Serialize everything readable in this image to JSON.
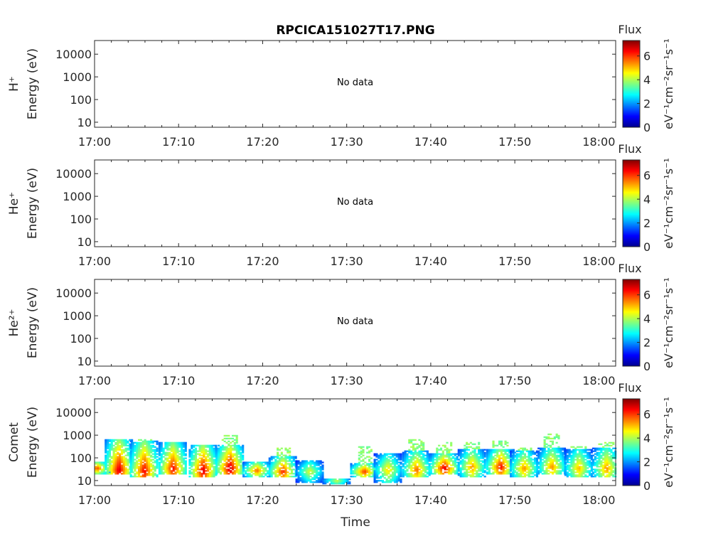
{
  "figure": {
    "title": "RPCICA151027T17.PNG",
    "xlabel": "Time",
    "no_data_label": "No data",
    "colorbar_title": "Flux",
    "colorbar_unit": "eV⁻¹cm⁻²sr⁻¹s⁻¹",
    "colorbar_ticks": [
      "0",
      "2",
      "4",
      "6"
    ],
    "colormap": "jet"
  },
  "chart_data": [
    {
      "type": "heatmap",
      "species": "H⁺",
      "ylabel": "Energy (eV)",
      "x_ticks": [
        "17:00",
        "17:10",
        "17:20",
        "17:30",
        "17:40",
        "17:50",
        "18:00"
      ],
      "y_ticks": [
        "10",
        "100",
        "1000",
        "10000"
      ],
      "y_scale": "log",
      "has_data": false,
      "clim": [
        0,
        7.3
      ]
    },
    {
      "type": "heatmap",
      "species": "He⁺",
      "ylabel": "Energy (eV)",
      "x_ticks": [
        "17:00",
        "17:10",
        "17:20",
        "17:30",
        "17:40",
        "17:50",
        "18:00"
      ],
      "y_ticks": [
        "10",
        "100",
        "1000",
        "10000"
      ],
      "y_scale": "log",
      "has_data": false,
      "clim": [
        0,
        7.3
      ]
    },
    {
      "type": "heatmap",
      "species": "He²⁺",
      "ylabel": "Energy (eV)",
      "x_ticks": [
        "17:00",
        "17:10",
        "17:20",
        "17:30",
        "17:40",
        "17:50",
        "18:00"
      ],
      "y_ticks": [
        "10",
        "100",
        "1000",
        "10000"
      ],
      "y_scale": "log",
      "has_data": false,
      "clim": [
        0,
        7.3
      ]
    },
    {
      "type": "heatmap",
      "species": "Comet",
      "ylabel": "Energy (eV)",
      "x_ticks": [
        "17:00",
        "17:10",
        "17:20",
        "17:30",
        "17:40",
        "17:50",
        "18:00"
      ],
      "y_ticks": [
        "10",
        "100",
        "1000",
        "10000"
      ],
      "y_scale": "log",
      "has_data": true,
      "clim": [
        0,
        7.3
      ],
      "xlim_minutes": [
        0,
        62
      ],
      "ylim_eV": [
        6,
        40000
      ],
      "bursts": [
        {
          "t": 0.2,
          "e_lo": 20,
          "e_peak": 35,
          "e_hi": 70,
          "peak": 6.0,
          "hi_tail": 0
        },
        {
          "t": 2.8,
          "e_lo": 18,
          "e_peak": 30,
          "e_hi": 700,
          "peak": 6.8,
          "hi_tail": 700
        },
        {
          "t": 5.8,
          "e_lo": 15,
          "e_peak": 28,
          "e_hi": 600,
          "peak": 6.6,
          "hi_tail": 650
        },
        {
          "t": 9.2,
          "e_lo": 18,
          "e_peak": 35,
          "e_hi": 500,
          "peak": 6.5,
          "hi_tail": 450
        },
        {
          "t": 12.8,
          "e_lo": 15,
          "e_peak": 28,
          "e_hi": 400,
          "peak": 6.8,
          "hi_tail": 350
        },
        {
          "t": 16.0,
          "e_lo": 20,
          "e_peak": 35,
          "e_hi": 400,
          "peak": 7.0,
          "hi_tail": 1000
        },
        {
          "t": 19.2,
          "e_lo": 15,
          "e_peak": 28,
          "e_hi": 70,
          "peak": 5.8,
          "hi_tail": 0
        },
        {
          "t": 22.3,
          "e_lo": 15,
          "e_peak": 25,
          "e_hi": 120,
          "peak": 6.3,
          "hi_tail": 280
        },
        {
          "t": 25.5,
          "e_lo": 8,
          "e_peak": 25,
          "e_hi": 80,
          "peak": 4.5,
          "hi_tail": 0
        },
        {
          "t": 28.7,
          "e_lo": 7,
          "e_peak": 10,
          "e_hi": 12,
          "peak": 4.2,
          "hi_tail": 0
        },
        {
          "t": 32.0,
          "e_lo": 15,
          "e_peak": 25,
          "e_hi": 60,
          "peak": 6.2,
          "hi_tail": 350
        },
        {
          "t": 34.8,
          "e_lo": 8,
          "e_peak": 30,
          "e_hi": 150,
          "peak": 5.0,
          "hi_tail": 0
        },
        {
          "t": 38.2,
          "e_lo": 15,
          "e_peak": 30,
          "e_hi": 200,
          "peak": 5.8,
          "hi_tail": 700
        },
        {
          "t": 41.5,
          "e_lo": 18,
          "e_peak": 35,
          "e_hi": 150,
          "peak": 6.8,
          "hi_tail": 500
        },
        {
          "t": 44.8,
          "e_lo": 15,
          "e_peak": 40,
          "e_hi": 250,
          "peak": 5.5,
          "hi_tail": 500
        },
        {
          "t": 48.2,
          "e_lo": 18,
          "e_peak": 40,
          "e_hi": 250,
          "peak": 6.5,
          "hi_tail": 600
        },
        {
          "t": 51.0,
          "e_lo": 15,
          "e_peak": 35,
          "e_hi": 200,
          "peak": 5.5,
          "hi_tail": 300
        },
        {
          "t": 54.3,
          "e_lo": 18,
          "e_peak": 40,
          "e_hi": 300,
          "peak": 5.5,
          "hi_tail": 1100
        },
        {
          "t": 57.5,
          "e_lo": 15,
          "e_peak": 35,
          "e_hi": 250,
          "peak": 5.2,
          "hi_tail": 350
        },
        {
          "t": 60.8,
          "e_lo": 15,
          "e_peak": 35,
          "e_hi": 300,
          "peak": 5.5,
          "hi_tail": 500
        }
      ]
    }
  ]
}
